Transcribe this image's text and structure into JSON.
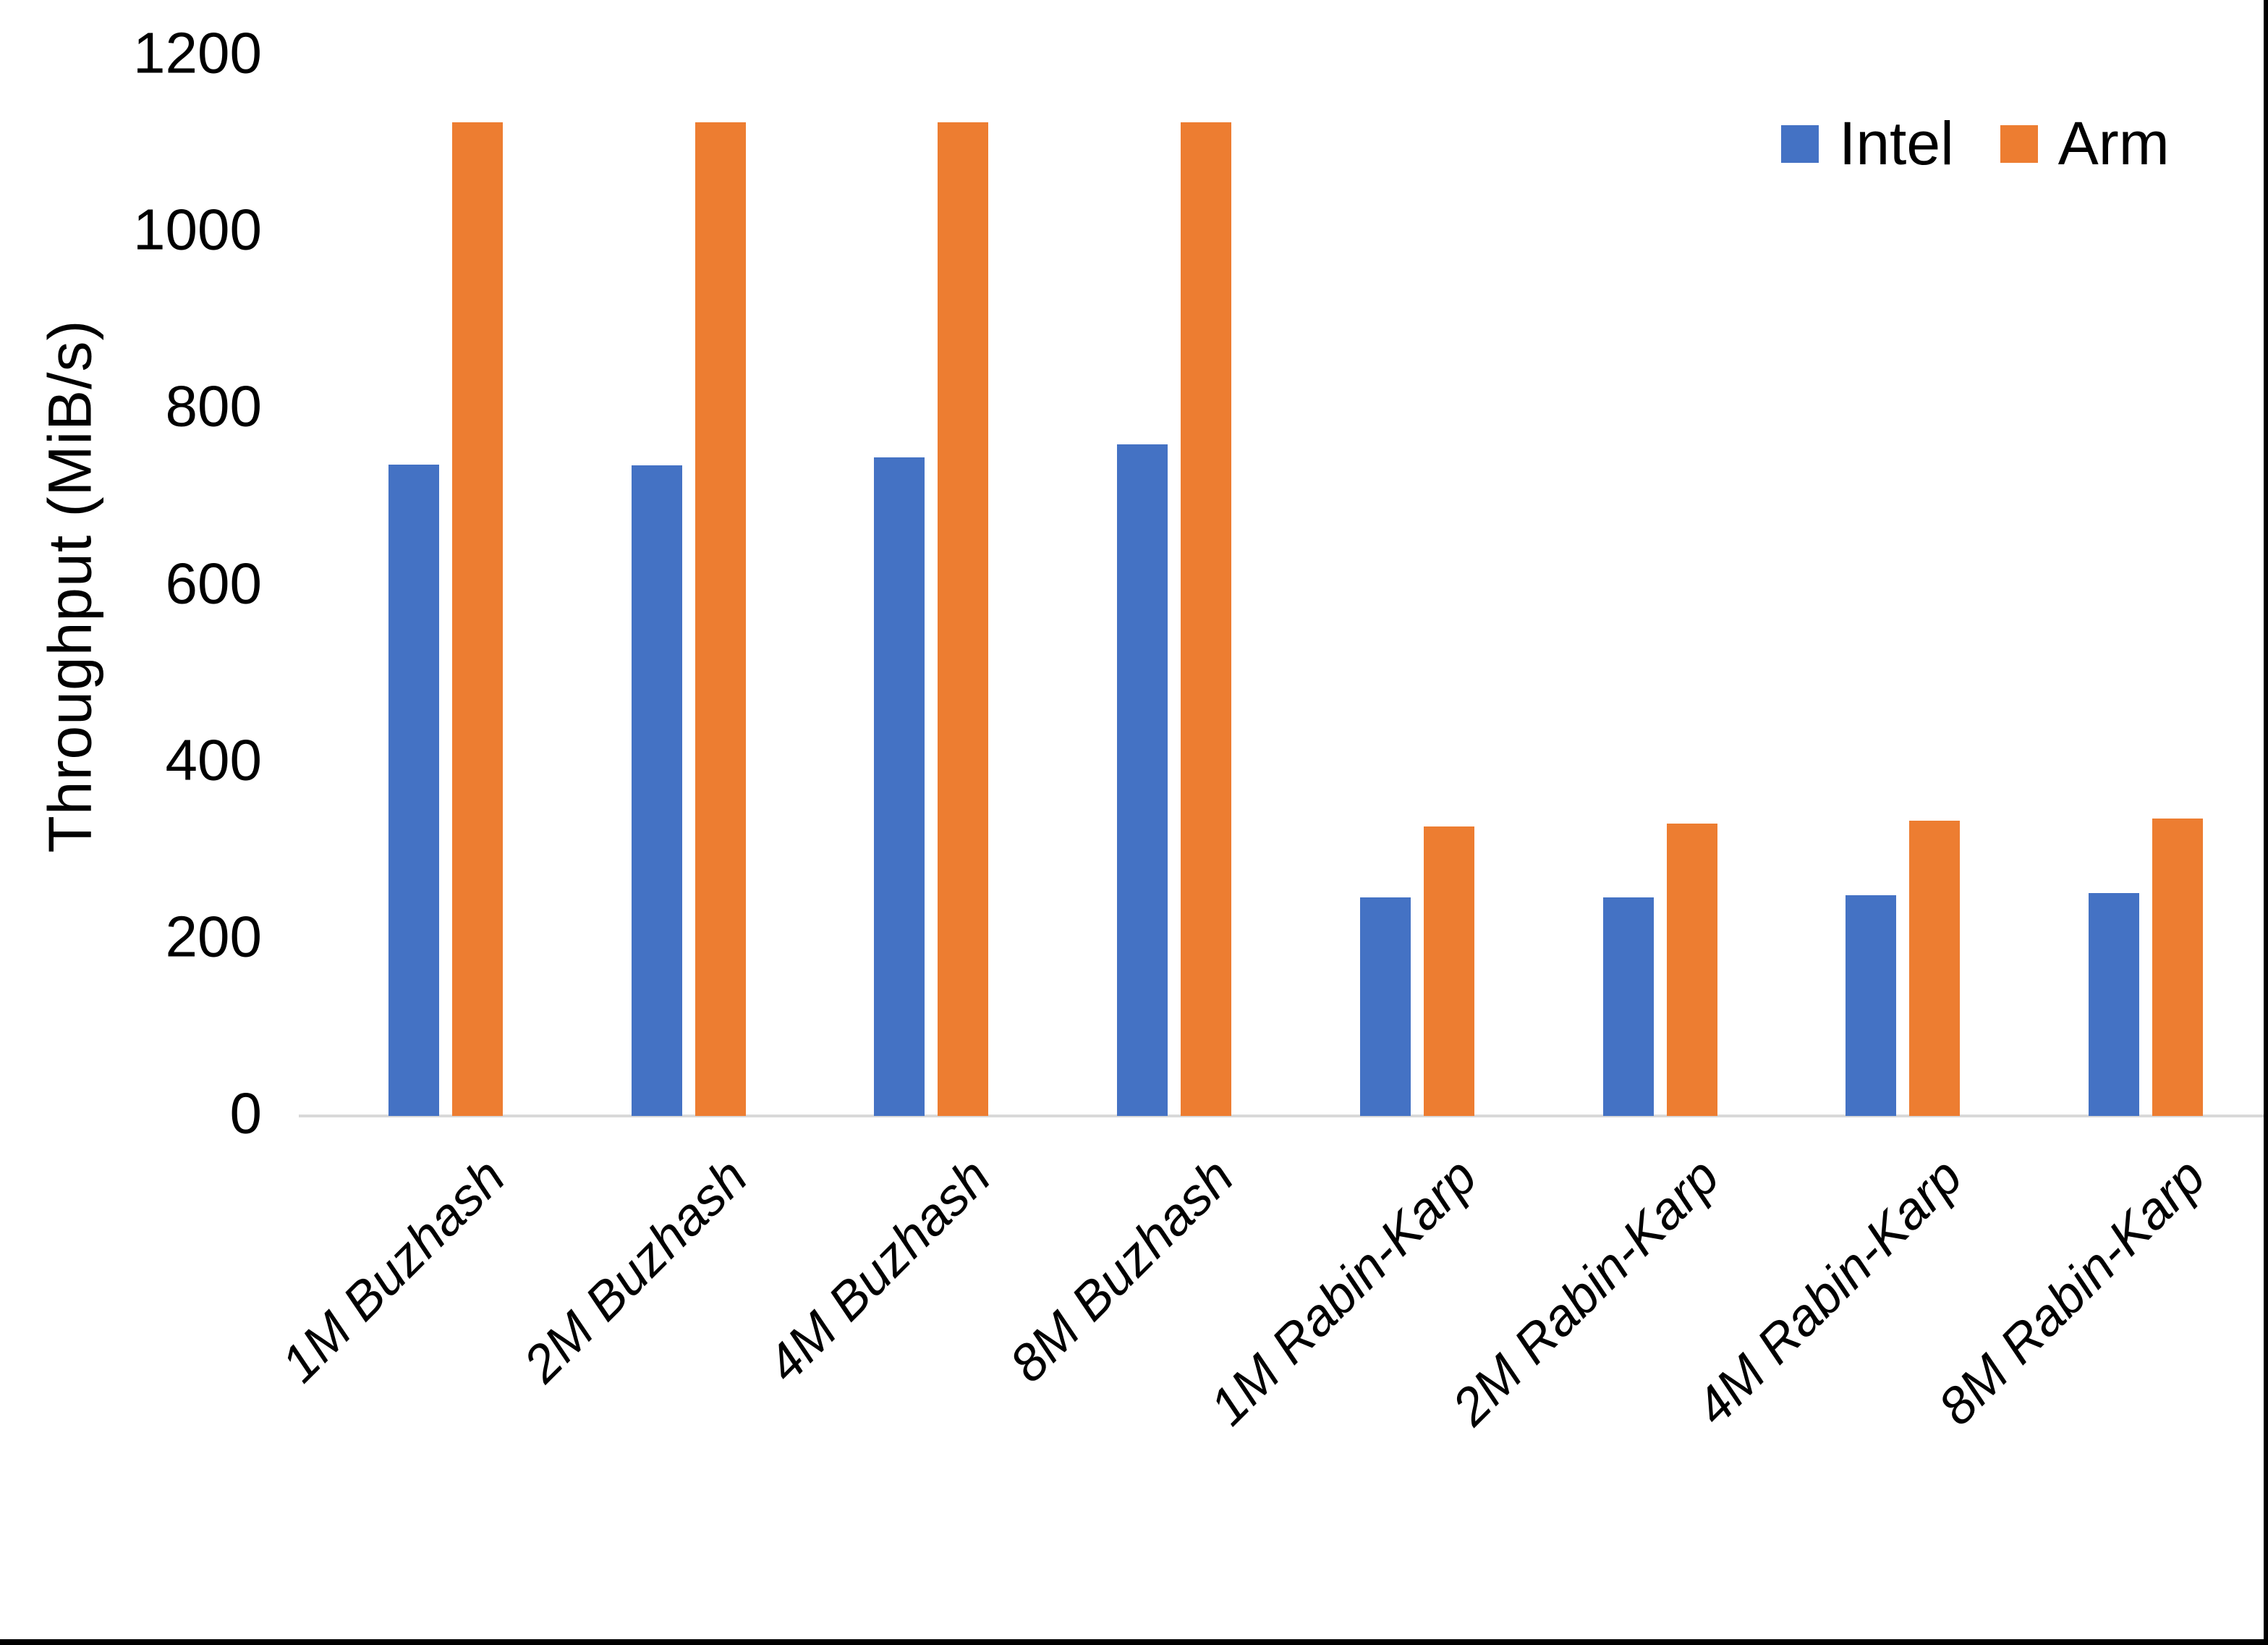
{
  "page": {
    "background_color": "#FFFFFF",
    "frame_color": "#000000",
    "axis_line_color": "#D9D9D9",
    "text_color": "#000000"
  },
  "chart_data": {
    "type": "bar",
    "title": "",
    "ylabel": "Throughput (MiB/s)",
    "xlabel": "",
    "categories": [
      "1M Buzhash",
      "2M Buzhash",
      "4M Buzhash",
      "8M Buzhash",
      "1M Rabin-Karp",
      "2M Rabin-Karp",
      "4M Rabin-Karp",
      "8M Rabin-Karp"
    ],
    "series": [
      {
        "name": "Intel",
        "color": "#4472C4",
        "values": [
          737,
          736,
          745,
          760,
          247,
          247,
          250,
          252
        ]
      },
      {
        "name": "Arm",
        "color": "#ED7D31",
        "values": [
          1125,
          1125,
          1125,
          1125,
          328,
          331,
          334,
          337
        ]
      }
    ],
    "ylim": [
      0,
      1200
    ],
    "yticks": [
      0,
      200,
      400,
      600,
      800,
      1000,
      1200
    ],
    "grid": "off",
    "legend_position": "top-right",
    "category_label_rotation_deg": -45,
    "category_label_style": "italic"
  }
}
